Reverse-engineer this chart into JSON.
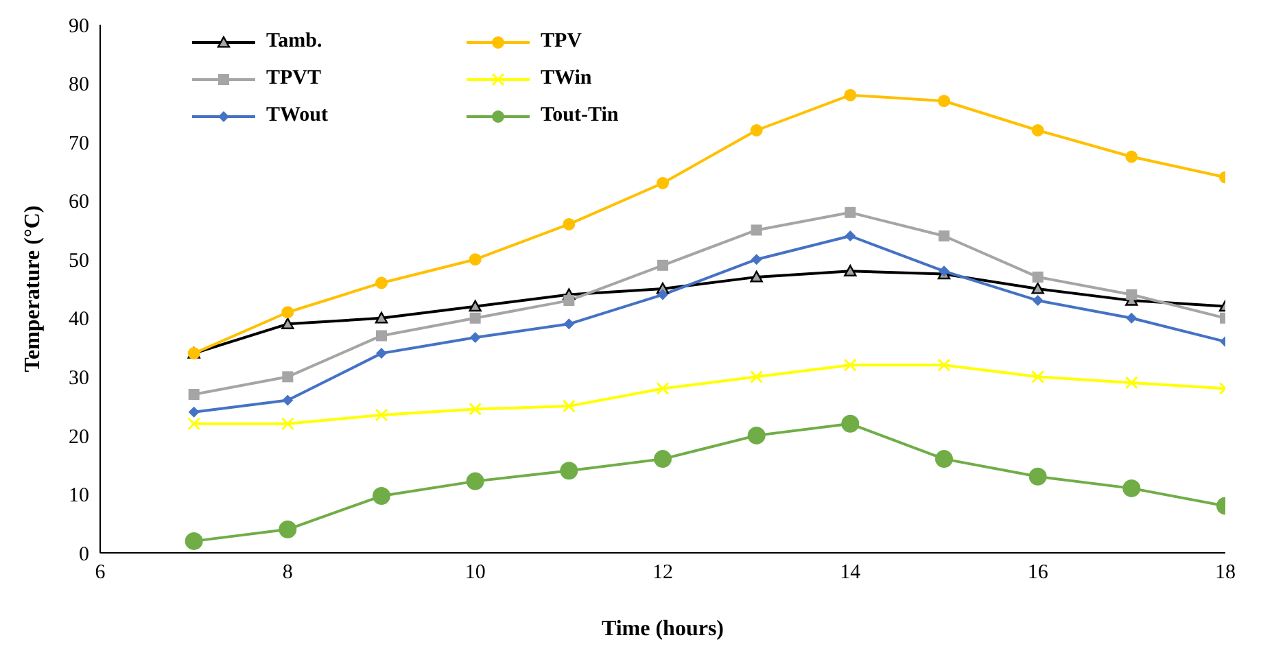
{
  "chart_data": {
    "type": "line",
    "xlabel": "Time (hours)",
    "ylabel": "Temperature (°C)",
    "x": [
      7,
      8,
      9,
      10,
      11,
      12,
      13,
      14,
      15,
      16,
      17,
      18
    ],
    "xlim": [
      6,
      18
    ],
    "xticks": [
      6,
      8,
      10,
      12,
      14,
      16,
      18
    ],
    "ylim": [
      0,
      90
    ],
    "yticks": [
      0,
      10,
      20,
      30,
      40,
      50,
      60,
      70,
      80,
      90
    ],
    "grid": false,
    "legend": "top left",
    "series": [
      {
        "name": "Tamb.",
        "color": "#000000",
        "marker": "triangle",
        "values": [
          34,
          39,
          40,
          42,
          44,
          45,
          47,
          48,
          47.5,
          45,
          43,
          42
        ]
      },
      {
        "name": "TPV",
        "color": "#ffc000",
        "marker": "circle",
        "values": [
          34,
          41,
          46,
          50,
          56,
          63,
          72,
          78,
          77,
          72,
          67.5,
          64
        ]
      },
      {
        "name": "TPVT",
        "color": "#a5a5a5",
        "marker": "square",
        "values": [
          27,
          30,
          37,
          40,
          43,
          49,
          55,
          58,
          54,
          47,
          44,
          40
        ]
      },
      {
        "name": "TWin",
        "color": "#ffff00",
        "marker": "cross",
        "values": [
          22,
          22,
          23.5,
          24.5,
          25,
          28,
          30,
          32,
          32,
          30,
          29,
          28
        ]
      },
      {
        "name": "TWout",
        "color": "#4472c4",
        "marker": "diamond",
        "values": [
          24,
          26,
          34,
          36.7,
          39,
          44,
          50,
          54,
          48,
          43,
          40,
          36
        ]
      },
      {
        "name": "Tout-Tin",
        "color": "#70ad47",
        "marker": "circle",
        "values": [
          2,
          4,
          9.7,
          12.2,
          14,
          16,
          20,
          22,
          16,
          13,
          11,
          8
        ]
      }
    ]
  }
}
